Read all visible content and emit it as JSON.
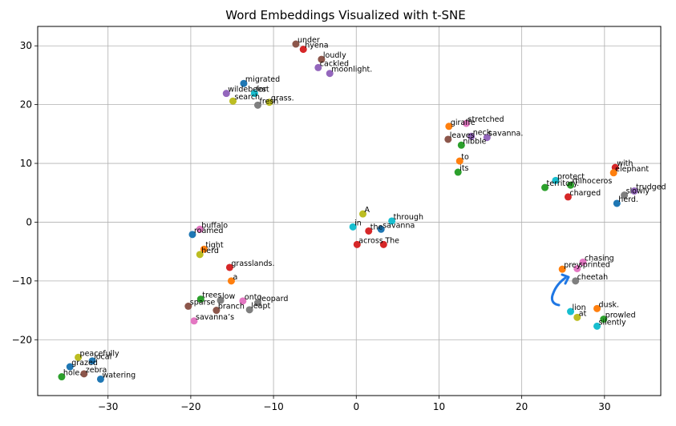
{
  "chart_data": {
    "type": "scatter",
    "title": "Word Embeddings Visualized with t-SNE",
    "xlabel": "",
    "ylabel": "",
    "xlim": [
      -38.5,
      36.8
    ],
    "ylim": [
      -29.5,
      33.3
    ],
    "xticks": [
      -30,
      -20,
      -10,
      0,
      10,
      20,
      30
    ],
    "yticks": [
      -20,
      -10,
      0,
      10,
      20,
      30
    ],
    "xtick_labels": [
      "−30",
      "−20",
      "−10",
      "0",
      "10",
      "20",
      "30"
    ],
    "ytick_labels": [
      "−20",
      "−10",
      "0",
      "10",
      "20",
      "30"
    ],
    "grid": true,
    "points": [
      {
        "label": "under",
        "x": -7.3,
        "y": 30.3,
        "color": "#8c564b"
      },
      {
        "label": "hyena",
        "x": -6.4,
        "y": 29.4,
        "color": "#d62728"
      },
      {
        "label": "loudly",
        "x": -4.2,
        "y": 27.7,
        "color": "#8c564b"
      },
      {
        "label": "cackled",
        "x": -4.6,
        "y": 26.3,
        "color": "#9467bd"
      },
      {
        "label": "moonlight.",
        "x": -3.2,
        "y": 25.3,
        "color": "#9467bd"
      },
      {
        "label": "migrated",
        "x": -13.6,
        "y": 23.6,
        "color": "#1f77b4"
      },
      {
        "label": "wildebeest",
        "x": -15.7,
        "y": 21.9,
        "color": "#9467bd"
      },
      {
        "label": "for",
        "x": -12.3,
        "y": 21.9,
        "color": "#17becf"
      },
      {
        "label": "search",
        "x": -14.9,
        "y": 20.6,
        "color": "#bcbd22"
      },
      {
        "label": "fresh",
        "x": -11.9,
        "y": 19.9,
        "color": "#7f7f7f"
      },
      {
        "label": "grass.",
        "x": -10.5,
        "y": 20.4,
        "color": "#bcbd22"
      },
      {
        "label": "stretched",
        "x": 13.3,
        "y": 16.8,
        "color": "#e377c2"
      },
      {
        "label": "giraffe",
        "x": 11.2,
        "y": 16.3,
        "color": "#ff7f0e"
      },
      {
        "label": "neck",
        "x": 13.9,
        "y": 14.6,
        "color": "#9467bd"
      },
      {
        "label": "savanna.",
        "x": 15.8,
        "y": 14.4,
        "color": "#9467bd"
      },
      {
        "label": "leaves",
        "x": 11.1,
        "y": 14.1,
        "color": "#8c564b"
      },
      {
        "label": "nibble",
        "x": 12.7,
        "y": 13.1,
        "color": "#2ca02c"
      },
      {
        "label": "to",
        "x": 12.5,
        "y": 10.4,
        "color": "#ff7f0e"
      },
      {
        "label": "its",
        "x": 12.3,
        "y": 8.5,
        "color": "#2ca02c"
      },
      {
        "label": "with",
        "x": 31.3,
        "y": 9.3,
        "color": "#d62728"
      },
      {
        "label": "elephant",
        "x": 31.1,
        "y": 8.4,
        "color": "#ff7f0e"
      },
      {
        "label": "protect",
        "x": 24.1,
        "y": 7.1,
        "color": "#17becf"
      },
      {
        "label": "territory.",
        "x": 22.8,
        "y": 5.9,
        "color": "#2ca02c"
      },
      {
        "label": "rhinoceros",
        "x": 25.9,
        "y": 6.3,
        "color": "#2ca02c"
      },
      {
        "label": "trudged",
        "x": 33.6,
        "y": 5.3,
        "color": "#9467bd"
      },
      {
        "label": "slowly",
        "x": 32.4,
        "y": 4.6,
        "color": "#7f7f7f"
      },
      {
        "label": "charged",
        "x": 25.6,
        "y": 4.3,
        "color": "#d62728"
      },
      {
        "label": "herd.",
        "x": 31.5,
        "y": 3.2,
        "color": "#1f77b4"
      },
      {
        "label": "A",
        "x": 0.8,
        "y": 1.4,
        "color": "#bcbd22"
      },
      {
        "label": "through",
        "x": 4.3,
        "y": 0.2,
        "color": "#17becf"
      },
      {
        "label": "in",
        "x": -0.4,
        "y": -0.8,
        "color": "#17becf"
      },
      {
        "label": "the",
        "x": 1.5,
        "y": -1.5,
        "color": "#d62728"
      },
      {
        "label": "savanna",
        "x": 3.0,
        "y": -1.2,
        "color": "#1f77b4"
      },
      {
        "label": "across",
        "x": 0.1,
        "y": -3.8,
        "color": "#d62728"
      },
      {
        "label": "The",
        "x": 3.3,
        "y": -3.8,
        "color": "#d62728"
      },
      {
        "label": "buffalo",
        "x": -18.9,
        "y": -1.2,
        "color": "#e377c2"
      },
      {
        "label": "roamed",
        "x": -19.8,
        "y": -2.1,
        "color": "#1f77b4"
      },
      {
        "label": "tight",
        "x": -18.4,
        "y": -4.6,
        "color": "#ff7f0e"
      },
      {
        "label": "herd",
        "x": -18.9,
        "y": -5.5,
        "color": "#bcbd22"
      },
      {
        "label": "grasslands.",
        "x": -15.3,
        "y": -7.7,
        "color": "#d62728"
      },
      {
        "label": "a",
        "x": -15.1,
        "y": -10.0,
        "color": "#ff7f0e"
      },
      {
        "label": "chasing",
        "x": 27.4,
        "y": -6.8,
        "color": "#e377c2"
      },
      {
        "label": "prey",
        "x": 24.9,
        "y": -8.0,
        "color": "#ff7f0e"
      },
      {
        "label": "sprinted",
        "x": 26.7,
        "y": -7.9,
        "color": "#e377c2"
      },
      {
        "label": "cheetah",
        "x": 26.5,
        "y": -10.0,
        "color": "#7f7f7f"
      },
      {
        "label": "trees",
        "x": -18.8,
        "y": -13.1,
        "color": "#2ca02c"
      },
      {
        "label": "low",
        "x": -16.4,
        "y": -13.3,
        "color": "#7f7f7f"
      },
      {
        "label": "onto",
        "x": -13.7,
        "y": -13.4,
        "color": "#e377c2"
      },
      {
        "label": "leopard",
        "x": -11.9,
        "y": -13.7,
        "color": "#7f7f7f"
      },
      {
        "label": "sparse",
        "x": -20.3,
        "y": -14.3,
        "color": "#8c564b"
      },
      {
        "label": "branch",
        "x": -16.9,
        "y": -15.0,
        "color": "#8c564b"
      },
      {
        "label": "leapt",
        "x": -12.9,
        "y": -14.9,
        "color": "#7f7f7f"
      },
      {
        "label": "savanna’s",
        "x": -19.6,
        "y": -16.8,
        "color": "#e377c2"
      },
      {
        "label": "lion",
        "x": 25.9,
        "y": -15.2,
        "color": "#17becf"
      },
      {
        "label": "at",
        "x": 26.7,
        "y": -16.2,
        "color": "#bcbd22"
      },
      {
        "label": "dusk.",
        "x": 29.1,
        "y": -14.7,
        "color": "#ff7f0e"
      },
      {
        "label": "prowled",
        "x": 29.9,
        "y": -16.5,
        "color": "#2ca02c"
      },
      {
        "label": "silently",
        "x": 29.1,
        "y": -17.7,
        "color": "#17becf"
      },
      {
        "label": "peacefully",
        "x": -33.6,
        "y": -23.0,
        "color": "#bcbd22"
      },
      {
        "label": "local",
        "x": -31.9,
        "y": -23.6,
        "color": "#1f77b4"
      },
      {
        "label": "grazed",
        "x": -34.6,
        "y": -24.6,
        "color": "#1f77b4"
      },
      {
        "label": "zebra",
        "x": -32.9,
        "y": -25.8,
        "color": "#8c564b"
      },
      {
        "label": "hole.",
        "x": -35.6,
        "y": -26.3,
        "color": "#2ca02c"
      },
      {
        "label": "watering",
        "x": -30.9,
        "y": -26.7,
        "color": "#1f77b4"
      }
    ]
  }
}
